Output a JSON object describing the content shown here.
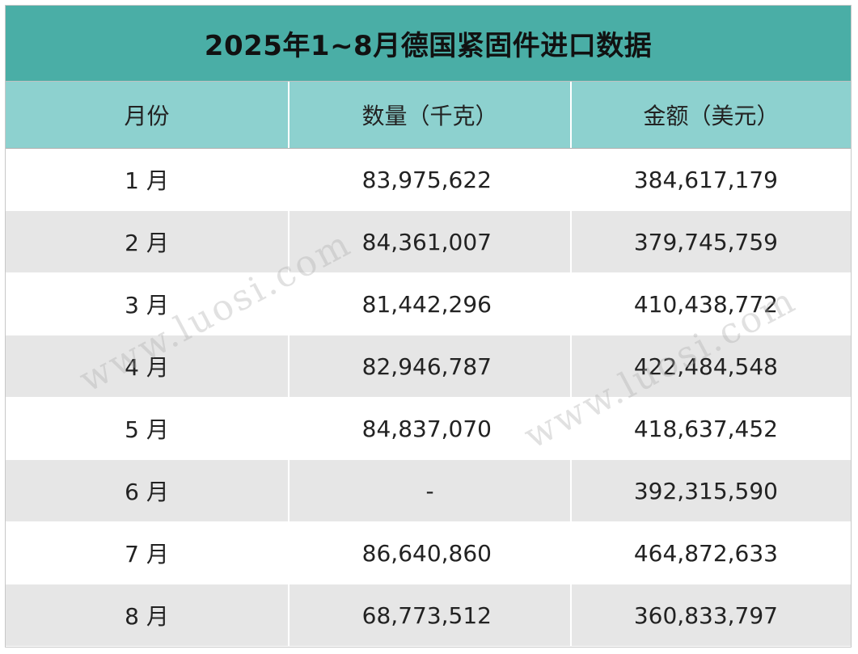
{
  "title": "2025年1~8月德国紧固件进口数据",
  "columns": [
    "月份",
    "数量（千克）",
    "金额（美元）"
  ],
  "rows": [
    {
      "month": "1 月",
      "quantity": "83,975,622",
      "amount": "384,617,179"
    },
    {
      "month": "2 月",
      "quantity": "84,361,007",
      "amount": "379,745,759"
    },
    {
      "month": "3 月",
      "quantity": "81,442,296",
      "amount": "410,438,772"
    },
    {
      "month": "4 月",
      "quantity": "82,946,787",
      "amount": "422,484,548"
    },
    {
      "month": "5 月",
      "quantity": "84,837,070",
      "amount": "418,637,452"
    },
    {
      "month": "6 月",
      "quantity": "-",
      "amount": "392,315,590"
    },
    {
      "month": "7 月",
      "quantity": "86,640,860",
      "amount": "464,872,633"
    },
    {
      "month": "8 月",
      "quantity": "68,773,512",
      "amount": "360,833,797"
    }
  ],
  "watermark": "www.luosi.com",
  "colors": {
    "title_bg": "#4aaea6",
    "header_bg": "#8dd1cf",
    "alt_row_bg": "#e6e6e6"
  }
}
